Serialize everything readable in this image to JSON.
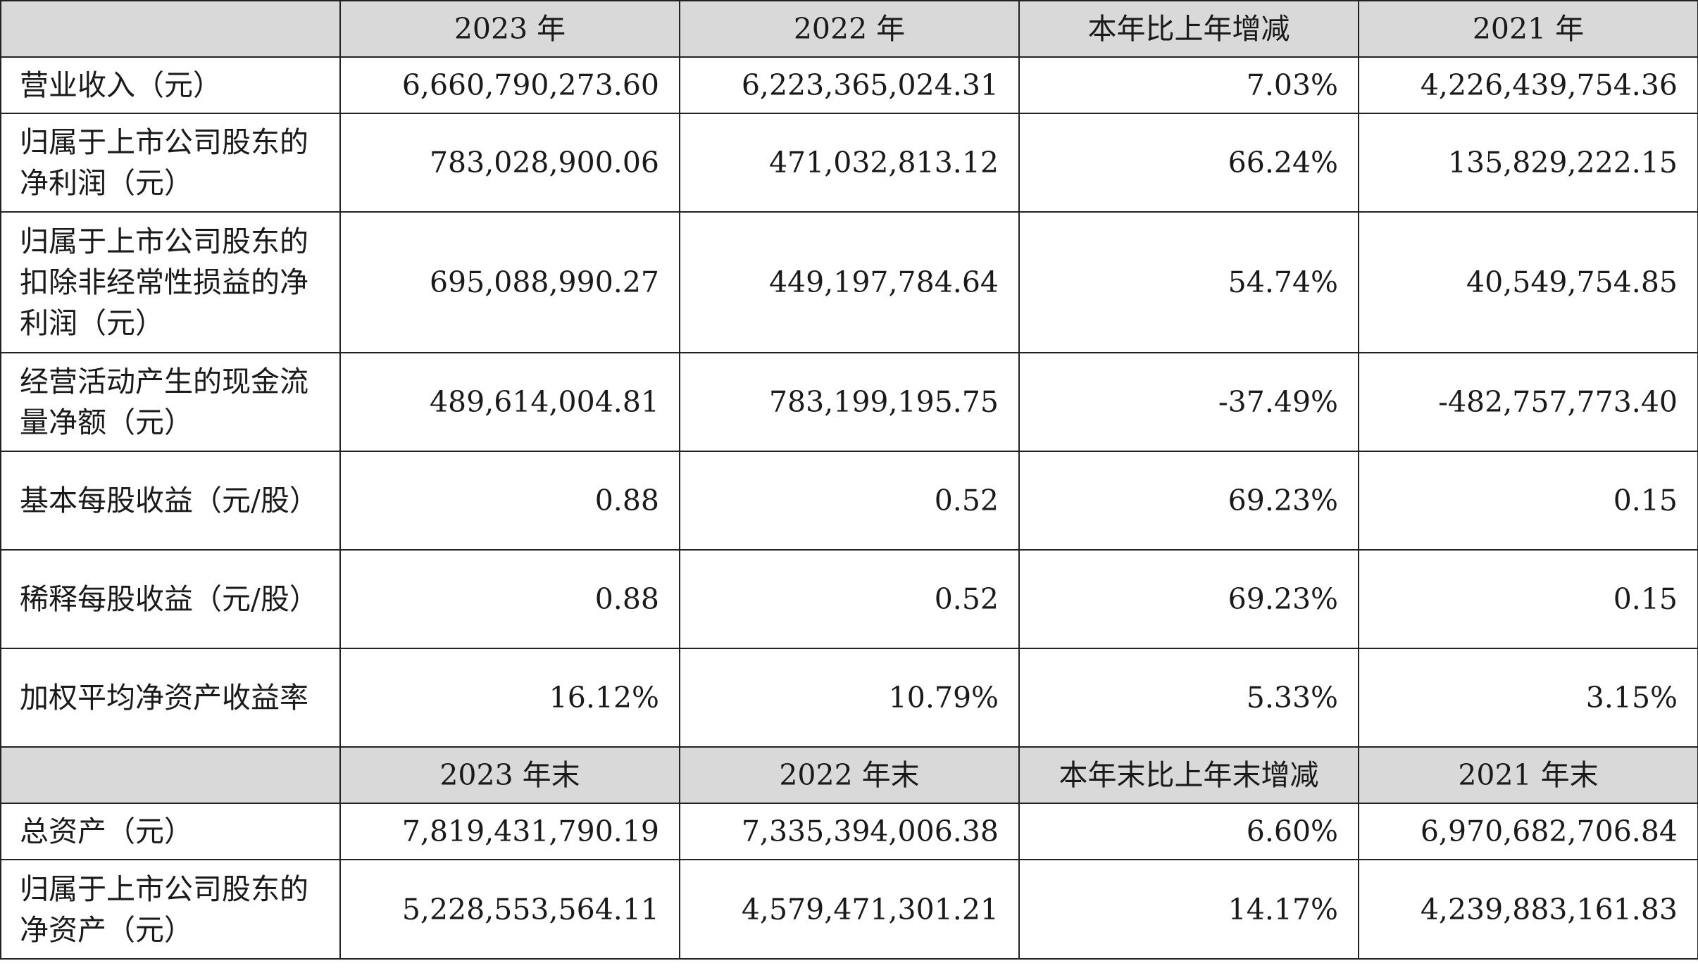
{
  "header_annual": {
    "blank": "",
    "col1": "2023 年",
    "col2": "2022 年",
    "col3": "本年比上年增减",
    "col4": "2021 年"
  },
  "annual_rows": [
    {
      "label": "营业收入（元）",
      "v2023": "6,660,790,273.60",
      "v2022": "6,223,365,024.31",
      "change": "7.03%",
      "v2021": "4,226,439,754.36"
    },
    {
      "label": "归属于上市公司股东的净利润（元）",
      "v2023": "783,028,900.06",
      "v2022": "471,032,813.12",
      "change": "66.24%",
      "v2021": "135,829,222.15"
    },
    {
      "label": "归属于上市公司股东的扣除非经常性损益的净利润（元）",
      "v2023": "695,088,990.27",
      "v2022": "449,197,784.64",
      "change": "54.74%",
      "v2021": "40,549,754.85"
    },
    {
      "label": "经营活动产生的现金流量净额（元）",
      "v2023": "489,614,004.81",
      "v2022": "783,199,195.75",
      "change": "-37.49%",
      "v2021": "-482,757,773.40"
    },
    {
      "label": "基本每股收益（元/股）",
      "v2023": "0.88",
      "v2022": "0.52",
      "change": "69.23%",
      "v2021": "0.15"
    },
    {
      "label": "稀释每股收益（元/股）",
      "v2023": "0.88",
      "v2022": "0.52",
      "change": "69.23%",
      "v2021": "0.15"
    },
    {
      "label": "加权平均净资产收益率",
      "v2023": "16.12%",
      "v2022": "10.79%",
      "change": "5.33%",
      "v2021": "3.15%"
    }
  ],
  "header_yearend": {
    "blank": "",
    "col1": "2023 年末",
    "col2": "2022 年末",
    "col3": "本年末比上年末增减",
    "col4": "2021 年末"
  },
  "yearend_rows": [
    {
      "label": "总资产（元）",
      "v2023": "7,819,431,790.19",
      "v2022": "7,335,394,006.38",
      "change": "6.60%",
      "v2021": "6,970,682,706.84"
    },
    {
      "label": "归属于上市公司股东的净资产（元）",
      "v2023": "5,228,553,564.11",
      "v2022": "4,579,471,301.21",
      "change": "14.17%",
      "v2021": "4,239,883,161.83"
    }
  ]
}
